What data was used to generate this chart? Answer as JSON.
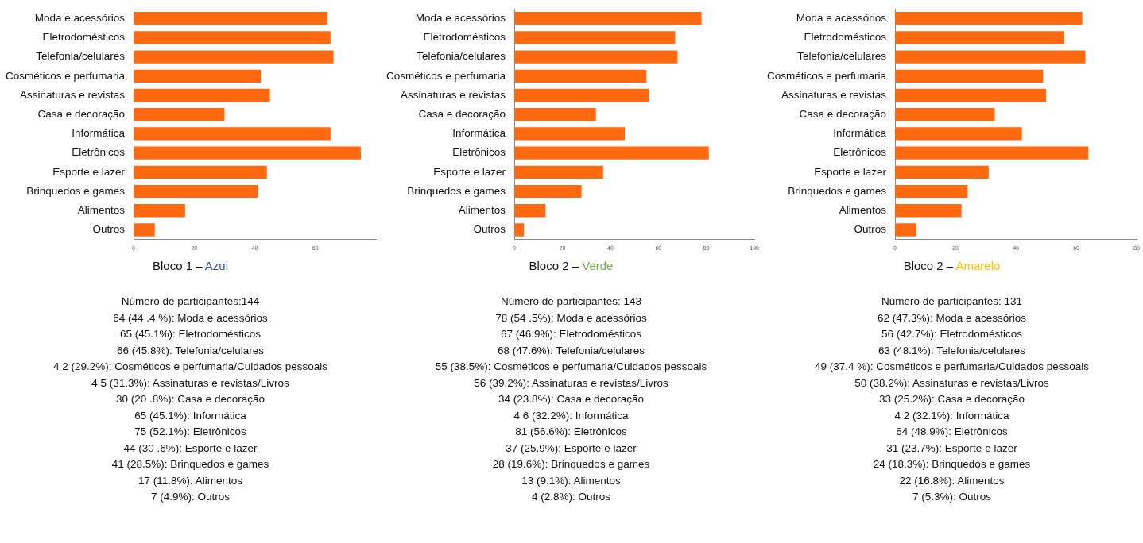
{
  "chart_data": [
    {
      "type": "bar",
      "orientation": "horizontal",
      "title": "Bloco 1 – Azul",
      "categories": [
        "Moda e acessórios",
        "Eletrodomésticos",
        "Telefonia/celulares",
        "Cosméticos e perfumaria",
        "Assinaturas e revistas",
        "Casa e decoração",
        "Informática",
        "Eletrônicos",
        "Esporte e lazer",
        "Brinquedos e games",
        "Alimentos",
        "Outros"
      ],
      "values": [
        64,
        65,
        66,
        42,
        45,
        30,
        65,
        75,
        44,
        41,
        17,
        7
      ],
      "color": "#ff6a10",
      "xlim": [
        0,
        80
      ],
      "xticks": [
        0,
        20,
        40,
        60
      ],
      "grid": false,
      "legend": false,
      "annotations": [
        "Número de participantes:144",
        "64 (44 .4 %): Moda e acessórios",
        "65 (45.1%): Eletrodomésticos",
        "66 (45.8%): Telefonia/celulares",
        "4 2 (29.2%): Cosméticos e perfumaria/Cuidados pessoais",
        "4 5 (31.3%): Assinaturas e revistas/Livros",
        "30 (20 .8%): Casa e decoração",
        "65 (45.1%): Informática",
        "75 (52.1%): Eletrônicos",
        "44 (30 .6%): Esporte e lazer",
        "41 (28.5%): Brinquedos e games",
        "17 (11.8%): Alimentos",
        "7 (4.9%): Outros"
      ]
    },
    {
      "type": "bar",
      "orientation": "horizontal",
      "title": "Bloco 2 – Verde",
      "categories": [
        "Moda e acessórios",
        "Eletrodomésticos",
        "Telefonia/celulares",
        "Cosméticos e perfumaria",
        "Assinaturas e revistas",
        "Casa e decoração",
        "Informática",
        "Eletrônicos",
        "Esporte e lazer",
        "Brinquedos e games",
        "Alimentos",
        "Outros"
      ],
      "values": [
        78,
        67,
        68,
        55,
        56,
        34,
        46,
        81,
        37,
        28,
        13,
        4
      ],
      "color": "#ff6a10",
      "xlim": [
        0,
        100
      ],
      "xticks": [
        0,
        20,
        40,
        60,
        80,
        100
      ],
      "grid": false,
      "legend": false,
      "annotations": [
        "Número de participantes: 143",
        "78 (54 .5%): Moda e acessórios",
        "67 (46.9%): Eletrodomésticos",
        "68 (47.6%): Telefonia/celulares",
        "55 (38.5%): Cosméticos e perfumaria/Cuidados pessoais",
        "56 (39.2%): Assinaturas e revistas/Livros",
        "34 (23.8%): Casa e decoração",
        "4 6 (32.2%): Informática",
        "81 (56.6%): Eletrônicos",
        "37 (25.9%): Esporte e lazer",
        "28 (19.6%): Brinquedos e games",
        "13 (9.1%): Alimentos",
        "4 (2.8%): Outros"
      ]
    },
    {
      "type": "bar",
      "orientation": "horizontal",
      "title": "Bloco 2 – Amarelo",
      "categories": [
        "Moda e acessórios",
        "Eletrodomésticos",
        "Telefonia/celulares",
        "Cosméticos e perfumaria",
        "Assinaturas e revistas",
        "Casa e decoração",
        "Informática",
        "Eletrônicos",
        "Esporte e lazer",
        "Brinquedos e games",
        "Alimentos",
        "Outros"
      ],
      "values": [
        62,
        56,
        63,
        49,
        50,
        33,
        42,
        64,
        31,
        24,
        22,
        7
      ],
      "color": "#ff6a10",
      "xlim": [
        0,
        80
      ],
      "xticks": [
        0,
        20,
        40,
        60,
        80
      ],
      "grid": false,
      "legend": false,
      "annotations": [
        "Número de participantes: 131",
        "62 (47.3%): Moda e acessórios",
        "56 (42.7%): Eletrodomésticos",
        "63 (48.1%): Telefonia/celulares",
        "49 (37.4 %): Cosméticos e perfumaria/Cuidados pessoais",
        "50 (38.2%): Assinaturas e revistas/Livros",
        "33 (25.2%): Casa e decoração",
        "4 2 (32.1%): Informática",
        "64 (48.9%): Eletrônicos",
        "31 (23.7%): Esporte e lazer",
        "24 (18.3%): Brinquedos e games",
        "22 (16.8%): Alimentos",
        "7 (5.3%): Outros"
      ]
    }
  ]
}
